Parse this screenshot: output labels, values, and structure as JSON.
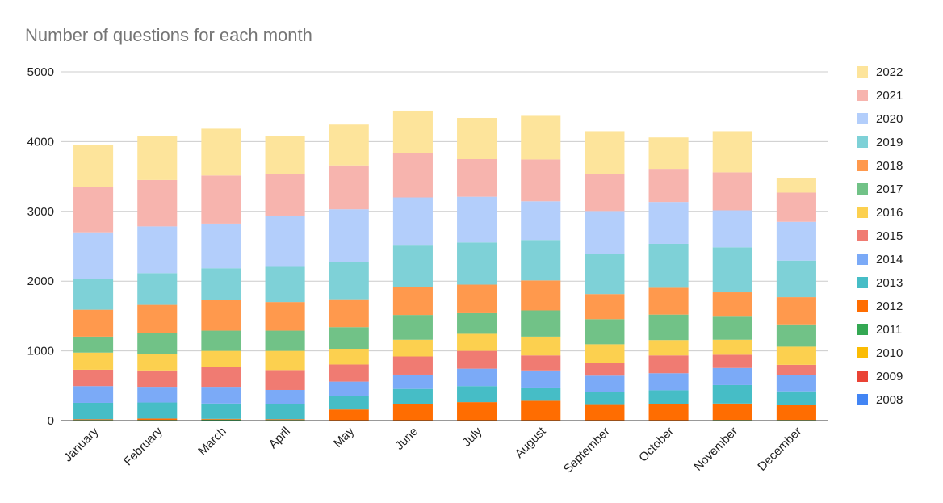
{
  "chart_data": {
    "type": "bar",
    "stacked": true,
    "title": "Number of questions for each month",
    "xlabel": "",
    "ylabel": "",
    "ylim": [
      0,
      5000
    ],
    "yticks": [
      0,
      1000,
      2000,
      3000,
      4000,
      5000
    ],
    "grid": true,
    "legend_position": "right",
    "categories": [
      "January",
      "February",
      "March",
      "April",
      "May",
      "June",
      "July",
      "August",
      "September",
      "October",
      "November",
      "December"
    ],
    "series": [
      {
        "name": "2008",
        "color": "#4285f4",
        "values": [
          0,
          0,
          0,
          0,
          0,
          0,
          0,
          0,
          0,
          0,
          0,
          0
        ]
      },
      {
        "name": "2009",
        "color": "#ea4335",
        "values": [
          0,
          0,
          0,
          0,
          0,
          0,
          0,
          0,
          0,
          0,
          0,
          0
        ]
      },
      {
        "name": "2010",
        "color": "#fbbc04",
        "values": [
          0,
          0,
          0,
          0,
          0,
          0,
          0,
          0,
          0,
          0,
          0,
          0
        ]
      },
      {
        "name": "2011",
        "color": "#34a853",
        "values": [
          10,
          10,
          15,
          10,
          5,
          5,
          5,
          5,
          5,
          5,
          10,
          10
        ]
      },
      {
        "name": "2012",
        "color": "#ff6d01",
        "values": [
          10,
          20,
          10,
          10,
          155,
          230,
          260,
          280,
          220,
          230,
          235,
          210
        ]
      },
      {
        "name": "2013",
        "color": "#46bdc6",
        "values": [
          235,
          230,
          220,
          220,
          195,
          220,
          230,
          190,
          190,
          200,
          265,
          200
        ]
      },
      {
        "name": "2014",
        "color": "#7baaf7",
        "values": [
          240,
          225,
          240,
          200,
          205,
          205,
          250,
          245,
          230,
          245,
          245,
          230
        ]
      },
      {
        "name": "2015",
        "color": "#f07b72",
        "values": [
          235,
          235,
          290,
          285,
          245,
          260,
          255,
          215,
          185,
          255,
          190,
          150
        ]
      },
      {
        "name": "2016",
        "color": "#fcd04f",
        "values": [
          245,
          235,
          225,
          275,
          225,
          240,
          245,
          270,
          265,
          220,
          215,
          260
        ]
      },
      {
        "name": "2017",
        "color": "#71c287",
        "values": [
          230,
          295,
          290,
          290,
          310,
          355,
          295,
          375,
          360,
          365,
          330,
          320
        ]
      },
      {
        "name": "2018",
        "color": "#ff994d",
        "values": [
          385,
          410,
          435,
          410,
          400,
          400,
          410,
          430,
          360,
          385,
          350,
          390
        ]
      },
      {
        "name": "2019",
        "color": "#7ed1d7",
        "values": [
          445,
          455,
          460,
          505,
          530,
          595,
          605,
          580,
          570,
          630,
          645,
          525
        ]
      },
      {
        "name": "2020",
        "color": "#b3cefb",
        "values": [
          665,
          670,
          640,
          735,
          760,
          690,
          655,
          555,
          620,
          600,
          530,
          555
        ]
      },
      {
        "name": "2021",
        "color": "#f7b4ae",
        "values": [
          655,
          665,
          690,
          590,
          630,
          640,
          540,
          600,
          530,
          475,
          545,
          420
        ]
      },
      {
        "name": "2022",
        "color": "#fde49b",
        "values": [
          595,
          625,
          670,
          555,
          585,
          605,
          590,
          625,
          615,
          450,
          590,
          205
        ]
      }
    ]
  }
}
